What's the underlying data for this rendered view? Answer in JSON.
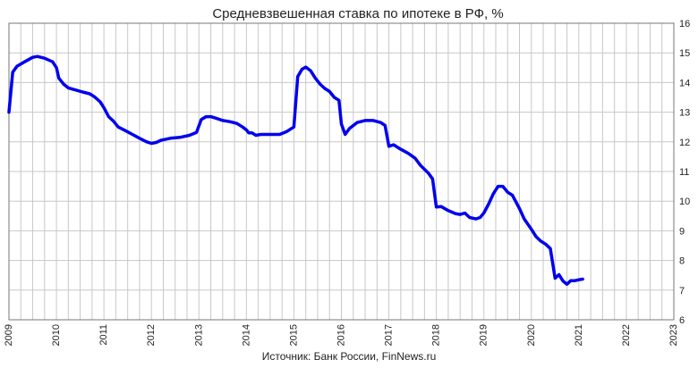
{
  "chart_data": {
    "type": "line",
    "title": "Средневзвешенная ставка по ипотеке в РФ, %",
    "source": "Источник: Банк России, FinNews.ru",
    "xlabel": "",
    "ylabel": "",
    "xlim": [
      2009,
      2023
    ],
    "ylim": [
      6,
      16
    ],
    "x_ticks": [
      "2009",
      "2010",
      "2011",
      "2012",
      "2013",
      "2014",
      "2015",
      "2016",
      "2017",
      "2018",
      "2019",
      "2020",
      "2021",
      "2022",
      "2023"
    ],
    "y_ticks": [
      "6",
      "7",
      "8",
      "9",
      "10",
      "11",
      "12",
      "13",
      "14",
      "15",
      "16"
    ],
    "grid": true,
    "x_minor_per_year": 4,
    "y_axis_side": "right",
    "series": [
      {
        "color": "#0000ee",
        "points": [
          [
            2009.0,
            13.0
          ],
          [
            2009.08,
            14.35
          ],
          [
            2009.17,
            14.55
          ],
          [
            2009.33,
            14.7
          ],
          [
            2009.5,
            14.85
          ],
          [
            2009.6,
            14.88
          ],
          [
            2009.75,
            14.82
          ],
          [
            2009.92,
            14.7
          ],
          [
            2010.0,
            14.5
          ],
          [
            2010.05,
            14.15
          ],
          [
            2010.15,
            13.95
          ],
          [
            2010.25,
            13.82
          ],
          [
            2010.4,
            13.75
          ],
          [
            2010.55,
            13.68
          ],
          [
            2010.7,
            13.62
          ],
          [
            2010.8,
            13.52
          ],
          [
            2010.92,
            13.35
          ],
          [
            2011.0,
            13.15
          ],
          [
            2011.1,
            12.85
          ],
          [
            2011.2,
            12.7
          ],
          [
            2011.3,
            12.5
          ],
          [
            2011.45,
            12.38
          ],
          [
            2011.6,
            12.25
          ],
          [
            2011.75,
            12.12
          ],
          [
            2011.9,
            12.0
          ],
          [
            2012.0,
            11.95
          ],
          [
            2012.1,
            11.98
          ],
          [
            2012.2,
            12.05
          ],
          [
            2012.4,
            12.12
          ],
          [
            2012.6,
            12.15
          ],
          [
            2012.8,
            12.22
          ],
          [
            2012.95,
            12.32
          ],
          [
            2013.05,
            12.75
          ],
          [
            2013.15,
            12.85
          ],
          [
            2013.25,
            12.85
          ],
          [
            2013.35,
            12.8
          ],
          [
            2013.5,
            12.72
          ],
          [
            2013.65,
            12.68
          ],
          [
            2013.8,
            12.62
          ],
          [
            2013.92,
            12.5
          ],
          [
            2014.0,
            12.4
          ],
          [
            2014.05,
            12.3
          ],
          [
            2014.12,
            12.3
          ],
          [
            2014.2,
            12.22
          ],
          [
            2014.3,
            12.25
          ],
          [
            2014.5,
            12.25
          ],
          [
            2014.7,
            12.25
          ],
          [
            2014.85,
            12.35
          ],
          [
            2015.0,
            12.5
          ],
          [
            2015.08,
            14.2
          ],
          [
            2015.17,
            14.45
          ],
          [
            2015.25,
            14.52
          ],
          [
            2015.35,
            14.4
          ],
          [
            2015.45,
            14.15
          ],
          [
            2015.55,
            13.95
          ],
          [
            2015.65,
            13.8
          ],
          [
            2015.75,
            13.7
          ],
          [
            2015.85,
            13.5
          ],
          [
            2015.95,
            13.4
          ],
          [
            2016.0,
            12.6
          ],
          [
            2016.08,
            12.25
          ],
          [
            2016.17,
            12.45
          ],
          [
            2016.33,
            12.65
          ],
          [
            2016.5,
            12.72
          ],
          [
            2016.67,
            12.72
          ],
          [
            2016.83,
            12.65
          ],
          [
            2016.92,
            12.55
          ],
          [
            2017.0,
            11.85
          ],
          [
            2017.1,
            11.9
          ],
          [
            2017.25,
            11.75
          ],
          [
            2017.4,
            11.62
          ],
          [
            2017.55,
            11.45
          ],
          [
            2017.67,
            11.2
          ],
          [
            2017.83,
            10.95
          ],
          [
            2017.92,
            10.75
          ],
          [
            2018.0,
            9.8
          ],
          [
            2018.1,
            9.82
          ],
          [
            2018.25,
            9.68
          ],
          [
            2018.4,
            9.58
          ],
          [
            2018.5,
            9.55
          ],
          [
            2018.6,
            9.6
          ],
          [
            2018.7,
            9.45
          ],
          [
            2018.83,
            9.4
          ],
          [
            2018.92,
            9.45
          ],
          [
            2019.0,
            9.6
          ],
          [
            2019.1,
            9.9
          ],
          [
            2019.2,
            10.25
          ],
          [
            2019.3,
            10.5
          ],
          [
            2019.4,
            10.5
          ],
          [
            2019.5,
            10.3
          ],
          [
            2019.6,
            10.2
          ],
          [
            2019.75,
            9.75
          ],
          [
            2019.85,
            9.4
          ],
          [
            2020.0,
            9.05
          ],
          [
            2020.1,
            8.8
          ],
          [
            2020.2,
            8.65
          ],
          [
            2020.3,
            8.55
          ],
          [
            2020.4,
            8.4
          ],
          [
            2020.5,
            7.4
          ],
          [
            2020.58,
            7.52
          ],
          [
            2020.67,
            7.3
          ],
          [
            2020.75,
            7.2
          ],
          [
            2020.83,
            7.32
          ],
          [
            2020.92,
            7.32
          ],
          [
            2021.0,
            7.35
          ],
          [
            2021.08,
            7.37
          ]
        ]
      }
    ]
  }
}
